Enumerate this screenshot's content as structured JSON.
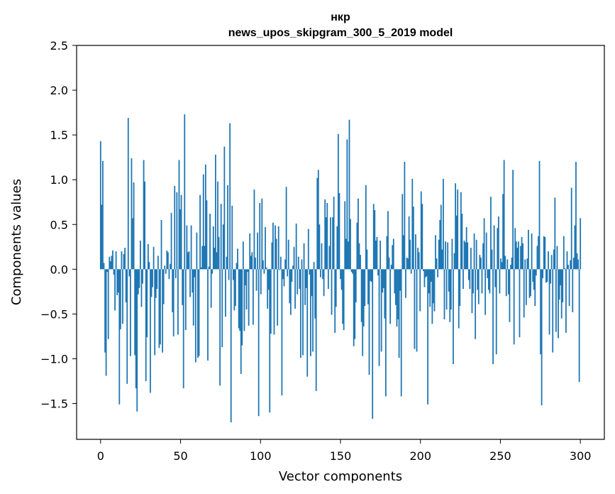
{
  "chart_data": {
    "type": "bar",
    "title": "нкр",
    "subtitle": "news_upos_skipgram_300_5_2019 model",
    "xlabel": "Vector components",
    "ylabel": "Components values",
    "xlim": [
      -15,
      315
    ],
    "ylim": [
      -1.9,
      2.5
    ],
    "xticks": [
      0,
      50,
      100,
      150,
      200,
      250,
      300
    ],
    "yticks": [
      -1.5,
      -1.0,
      -0.5,
      0.0,
      0.5,
      1.0,
      1.5,
      2.0,
      2.5
    ],
    "xtick_labels": [
      "0",
      "50",
      "100",
      "150",
      "200",
      "250",
      "300"
    ],
    "ytick_labels": [
      "−1.5",
      "−1.0",
      "−0.5",
      "0.0",
      "0.5",
      "1.0",
      "1.5",
      "2.0",
      "2.5"
    ],
    "grid": false,
    "bar_color": "#1f77b4",
    "values": [
      1.43,
      0.72,
      1.21,
      0.07,
      -0.93,
      -1.19,
      -0.03,
      -0.78,
      0.14,
      0.09,
      0.15,
      0.21,
      -0.06,
      -0.46,
      0.2,
      -0.29,
      -0.26,
      -1.51,
      -0.67,
      0.2,
      -0.61,
      0.17,
      0.24,
      -0.37,
      -1.28,
      1.69,
      -0.08,
      -0.97,
      1.24,
      0.57,
      0.97,
      -0.96,
      -1.33,
      -1.59,
      -0.28,
      -0.21,
      0.32,
      -0.42,
      -0.16,
      1.22,
      0.98,
      -1.25,
      -0.76,
      0.28,
      0.08,
      -1.38,
      -0.31,
      -0.2,
      0.25,
      -0.96,
      -0.32,
      -0.22,
      0.15,
      -0.88,
      -0.84,
      0.55,
      -0.93,
      -0.39,
      0.04,
      -0.05,
      0.21,
      0.19,
      -0.11,
      0.06,
      0.63,
      -0.48,
      -0.75,
      0.93,
      -0.1,
      0.86,
      -0.73,
      1.22,
      0.67,
      0.83,
      -0.4,
      -1.33,
      1.73,
      -0.68,
      0.49,
      0.19,
      0.2,
      -0.31,
      0.49,
      -0.26,
      -0.63,
      -0.09,
      -1.04,
      0.41,
      -0.99,
      -0.97,
      0.83,
      0.02,
      0.26,
      1.06,
      0.26,
      1.17,
      0.77,
      -1.02,
      0.03,
      0.62,
      -0.43,
      -0.05,
      0.48,
      0.24,
      1.28,
      0.19,
      0.98,
      0.36,
      -1.3,
      0.73,
      -0.87,
      0.5,
      1.37,
      -0.53,
      0.14,
      0.94,
      -0.12,
      1.63,
      -1.71,
      0.71,
      -0.12,
      -0.46,
      -0.41,
      0.07,
      0.23,
      -0.66,
      -0.69,
      -1.17,
      -0.85,
      0.31,
      -0.69,
      -0.18,
      -0.45,
      -0.03,
      -0.63,
      0.4,
      0.15,
      0.19,
      -0.62,
      0.89,
      0.13,
      -0.24,
      0.41,
      -1.64,
      0.74,
      -0.28,
      0.79,
      0.1,
      -0.05,
      0.47,
      0.02,
      -0.44,
      -0.23,
      -1.6,
      -0.72,
      0.3,
      0.52,
      -0.73,
      0.49,
      0.34,
      -0.63,
      0.48,
      -0.01,
      0.14,
      -1.41,
      -0.11,
      -0.19,
      0.11,
      0.92,
      -0.08,
      0.33,
      -0.38,
      -0.51,
      -0.14,
      0.04,
      0.25,
      -0.44,
      0.51,
      -0.28,
      0.14,
      -0.22,
      -0.99,
      0.11,
      -0.96,
      0.29,
      -0.4,
      -0.21,
      -1.2,
      0.45,
      -0.06,
      -0.97,
      -0.3,
      -0.92,
      0.08,
      -0.55,
      -1.36,
      1.02,
      1.11,
      0.5,
      -0.09,
      0.29,
      -0.11,
      -0.3,
      0.78,
      0.58,
      0.74,
      -0.22,
      0.26,
      0.58,
      -0.51,
      0.58,
      0.81,
      -0.71,
      -0.42,
      0.48,
      1.51,
      0.85,
      -0.11,
      -0.23,
      -0.61,
      -0.68,
      0.76,
      0.34,
      1.45,
      0.31,
      1.67,
      0.56,
      -0.03,
      -0.05,
      -0.86,
      -0.78,
      -0.37,
      0.52,
      0.79,
      0.29,
      0.16,
      -0.59,
      -0.97,
      -0.64,
      -0.41,
      0.94,
      0.22,
      -0.39,
      -1.18,
      -0.13,
      -0.14,
      -1.67,
      0.73,
      0.66,
      0.32,
      0.36,
      -0.07,
      -1.08,
      0.32,
      -0.92,
      -0.26,
      -0.21,
      -0.55,
      -1.42,
      0.37,
      0.65,
      0.13,
      -0.61,
      0.05,
      0.27,
      0.34,
      -0.27,
      -0.4,
      -0.64,
      -0.56,
      -0.99,
      -0.24,
      -1.42,
      0.84,
      0.38,
      1.2,
      -0.32,
      0.13,
      0.12,
      0.59,
      0.33,
      -0.05,
      1.01,
      0.7,
      -0.89,
      0.39,
      -0.92,
      0.24,
      0.19,
      -0.47,
      0.87,
      0.73,
      -0.02,
      -0.2,
      -0.09,
      -0.08,
      -1.51,
      -0.27,
      -0.42,
      -0.14,
      -0.61,
      -0.38,
      -0.47,
      0.38,
      0.12,
      -0.09,
      0.33,
      0.55,
      0.72,
      0.22,
      1.01,
      -0.56,
      0.31,
      -0.45,
      0.3,
      -0.25,
      -0.59,
      -0.45,
      0.34,
      -1.06,
      0.18,
      0.96,
      0.6,
      0.89,
      -0.66,
      -0.41,
      0.86,
      0.62,
      -0.22,
      0.32,
      0.3,
      0.47,
      0.3,
      -0.12,
      -0.22,
      0.24,
      -0.49,
      -0.27,
      0.4,
      -0.78,
      0.33,
      -0.23,
      -0.39,
      0.16,
      0.13,
      -0.27,
      0.29,
      0.57,
      -0.51,
      0.41,
      -0.1,
      -0.23,
      -0.27,
      0.81,
      0.22,
      -1.06,
      0.49,
      -0.2,
      -0.95,
      0.46,
      0.59,
      -0.27,
      0.12,
      0.08,
      0.84,
      1.22,
      0.15,
      -0.3,
      0.11,
      -0.28,
      -0.59,
      0.05,
      0.13,
      1.11,
      -0.84,
      0.46,
      0.31,
      0.24,
      0.31,
      -0.76,
      0.26,
      0.36,
      0.29,
      -0.54,
      0.11,
      -0.4,
      0.12,
      0.44,
      -0.32,
      -0.3,
      0.4,
      -0.14,
      -0.23,
      -0.41,
      -0.07,
      0.26,
      0.37,
      1.21,
      -0.95,
      -1.52,
      -0.1,
      0.37,
      0.36,
      -0.15,
      -0.14,
      0.2,
      -0.73,
      -0.16,
      0.16,
      -0.93,
      0.22,
      0.8,
      -0.7,
      0.26,
      -0.77,
      -0.34,
      -0.18,
      -0.55,
      -0.37,
      0.37,
      0.01,
      -0.71,
      0.2,
      0.05,
      -0.41,
      0.1,
      0.91,
      -0.48,
      0.13,
      0.49,
      1.2,
      0.18,
      0.11,
      -1.26,
      0.57
    ]
  }
}
